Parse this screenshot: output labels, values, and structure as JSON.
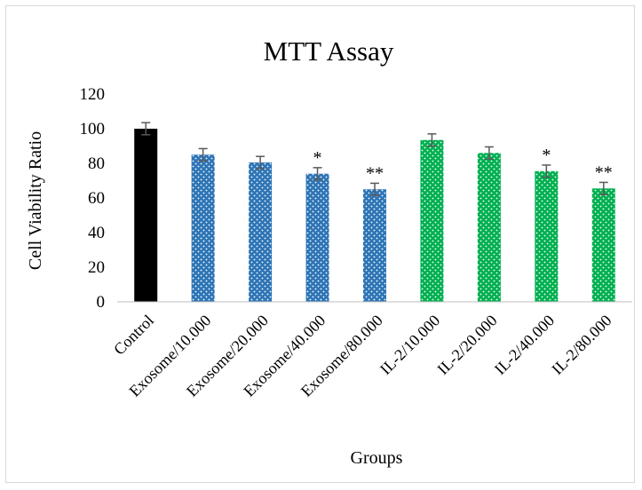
{
  "chart_data": {
    "type": "bar",
    "title": "MTT Assay",
    "xlabel": "Groups",
    "ylabel": "Cell Viability Ratio",
    "ylim": [
      0,
      120
    ],
    "yticks": [
      0,
      20,
      40,
      60,
      80,
      100,
      120
    ],
    "grid": false,
    "legend": "none",
    "categories": [
      "Control",
      "Exosome/10.000",
      "Exosome/20.000",
      "Exosome/40.000",
      "Exosome/80.000",
      "IL-2/10.000",
      "IL-2/20.000",
      "IL-2/40.000",
      "IL-2/80.000"
    ],
    "values": [
      100,
      85,
      80.5,
      74,
      65,
      93.5,
      86,
      75.5,
      65.5
    ],
    "errors": [
      3.5,
      3.5,
      3.5,
      3.5,
      3.5,
      3.5,
      3.5,
      3.5,
      3.5
    ],
    "significance": [
      "",
      "",
      "",
      "*",
      "**",
      "",
      "",
      "*",
      "**"
    ],
    "bar_colors": [
      "#000000",
      "#2e75b6",
      "#2e75b6",
      "#2e75b6",
      "#2e75b6",
      "#00b050",
      "#00b050",
      "#00b050",
      "#00b050"
    ],
    "bar_patterns": [
      "solid",
      "dotted",
      "dotted",
      "dotted",
      "dotted",
      "dotted",
      "dotted",
      "dotted",
      "dotted"
    ],
    "error_bar_color": "#595959",
    "axis_color": "#bfbfbf"
  }
}
